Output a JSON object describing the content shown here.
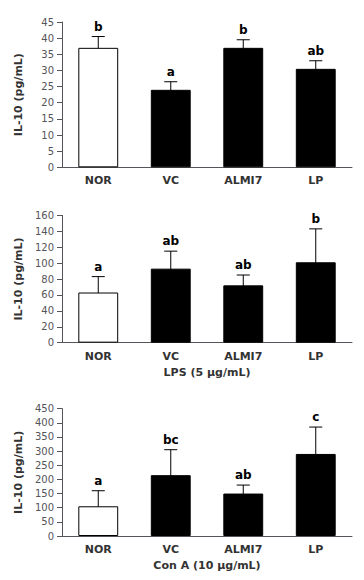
{
  "chart_data": [
    {
      "type": "bar",
      "categories": [
        "NOR",
        "VC",
        "ALMI7",
        "LP"
      ],
      "values": [
        37.0,
        24.0,
        37.0,
        30.5
      ],
      "errors": [
        3.5,
        2.5,
        2.5,
        2.5
      ],
      "annotations": [
        "b",
        "a",
        "b",
        "ab"
      ],
      "colors": [
        "white",
        "black",
        "black",
        "black"
      ],
      "ylabel": "IL-10 (pg/mL)",
      "ylim": [
        0,
        45
      ],
      "yticks": [
        0,
        5,
        10,
        15,
        20,
        25,
        30,
        35,
        40,
        45
      ],
      "grid": false
    },
    {
      "type": "bar",
      "categories": [
        "NOR",
        "VC",
        "ALMI7",
        "LP"
      ],
      "values": [
        63.0,
        93.0,
        72.0,
        101.0
      ],
      "errors": [
        20.0,
        22.0,
        13.0,
        42.0
      ],
      "annotations": [
        "a",
        "ab",
        "ab",
        "b"
      ],
      "colors": [
        "white",
        "black",
        "black",
        "black"
      ],
      "ylabel": "IL-10 (pg/mL)",
      "xlabel": "LPS (5 μg/mL)",
      "ylim": [
        0,
        160
      ],
      "yticks": [
        0,
        20,
        40,
        60,
        80,
        100,
        120,
        140,
        160
      ],
      "grid": false
    },
    {
      "type": "bar",
      "categories": [
        "NOR",
        "VC",
        "ALMI7",
        "LP"
      ],
      "values": [
        105.0,
        215.0,
        150.0,
        290.0
      ],
      "errors": [
        55.0,
        90.0,
        30.0,
        95.0
      ],
      "annotations": [
        "a",
        "bc",
        "ab",
        "c"
      ],
      "colors": [
        "white",
        "black",
        "black",
        "black"
      ],
      "ylabel": "IL-10 (pg/mL)",
      "xlabel": "Con A (10 μg/mL)",
      "ylim": [
        0,
        450
      ],
      "yticks": [
        0,
        50,
        100,
        150,
        200,
        250,
        300,
        350,
        400,
        450
      ],
      "grid": false
    }
  ]
}
